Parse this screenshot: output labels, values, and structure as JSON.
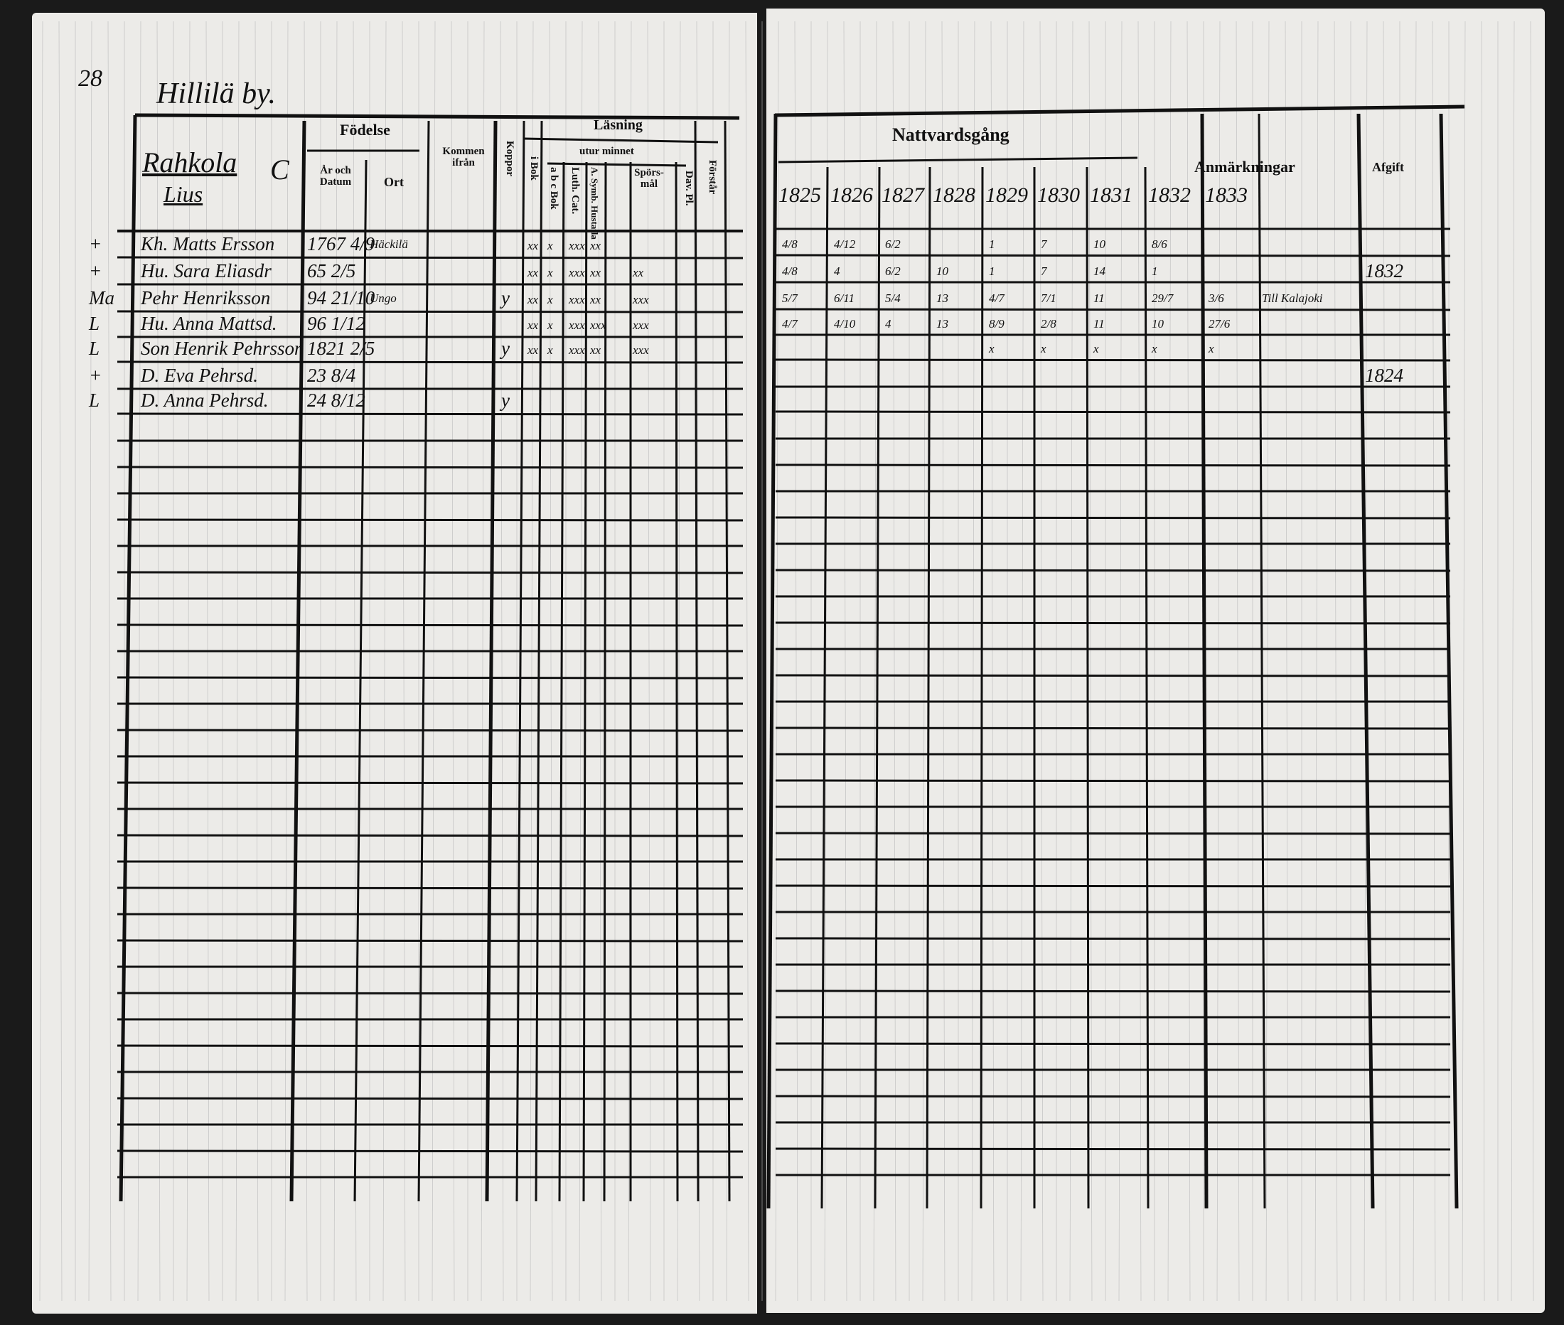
{
  "page_number": "28",
  "village": "Hillilä by.",
  "household": {
    "name": "Rahkola",
    "mark": "C",
    "sub": "Lius"
  },
  "headers": {
    "fodelse": "Födelse",
    "ar_och_datum": "År och Datum",
    "ort": "Ort",
    "kommen_ifran": "Kommen ifrån",
    "koppor": "Koppor",
    "lasning": "Läsning",
    "i_bok": "i Bok",
    "utur_minnet": "utur minnet",
    "abc_bok": "a b c Bok",
    "luth_cat": "Luth. Cat.",
    "a_symb_hustafla": "A. Symb. Hustafla",
    "sporsmal": "Spörs-mål",
    "dav_pl": "Dav. Pl.",
    "forstar": "Förstår",
    "nattvardsgang": "Nattvardsgång",
    "anmarkningar": "Anmärkningar",
    "afgift": "Afgift"
  },
  "years": [
    "1825",
    "1826",
    "1827",
    "1828",
    "1829",
    "1830",
    "1831",
    "1832",
    "1833"
  ],
  "rows": [
    {
      "margin": "+",
      "name": "Kh. Matts Ersson",
      "born": "1767 4/9",
      "place": "Häckilä",
      "koppor": "",
      "reading": [
        "xx",
        "x",
        "xxx",
        "xx",
        ""
      ],
      "communion": [
        "4/8",
        "4/12",
        "6/2",
        "",
        "1",
        "7",
        "10",
        "8/6",
        ""
      ],
      "note": "",
      "afgift": ""
    },
    {
      "margin": "+",
      "name": "Hu. Sara Eliasdr",
      "born": "65 2/5",
      "place": "",
      "koppor": "",
      "reading": [
        "xx",
        "x",
        "xxx",
        "xx",
        "xx"
      ],
      "communion": [
        "4/8",
        "4",
        "6/2",
        "10",
        "1",
        "7",
        "14",
        "1",
        ""
      ],
      "note": "",
      "afgift": "1832"
    },
    {
      "margin": "Ma",
      "name": "Pehr Henriksson",
      "born": "94 21/10",
      "place": "Ungo",
      "koppor": "y",
      "reading": [
        "xx",
        "x",
        "xxx",
        "xx",
        "xxx"
      ],
      "communion": [
        "5/7",
        "6/11",
        "5/4",
        "13",
        "4/7",
        "7/1",
        "11",
        "29/7",
        "3/6"
      ],
      "note": "Till Kalajoki",
      "afgift": ""
    },
    {
      "margin": "L",
      "name": "Hu. Anna Mattsd.",
      "born": "96 1/12",
      "place": "",
      "koppor": "",
      "reading": [
        "xx",
        "x",
        "xxx",
        "xxx",
        "xxx"
      ],
      "communion": [
        "4/7",
        "4/10",
        "4",
        "13",
        "8/9",
        "2/8",
        "11",
        "10",
        "27/6"
      ],
      "note": "",
      "afgift": ""
    },
    {
      "margin": "L",
      "name": "Son Henrik Pehrsson",
      "born": "1821 2/5",
      "place": "",
      "koppor": "y",
      "reading": [
        "xx",
        "x",
        "xxx",
        "xx",
        "xxx"
      ],
      "communion": [
        "",
        "",
        "",
        "",
        "x",
        "x",
        "x",
        "x",
        "x"
      ],
      "note": "",
      "afgift": ""
    },
    {
      "margin": "+",
      "name": "D. Eva Pehrsd.",
      "born": "23 8/4",
      "place": "",
      "koppor": "",
      "reading": [
        "",
        "",
        "",
        "",
        ""
      ],
      "communion": [
        "",
        "",
        "",
        "",
        "",
        "",
        "",
        "",
        ""
      ],
      "note": "",
      "afgift": "1824"
    },
    {
      "margin": "L",
      "name": "D. Anna Pehrsd.",
      "born": "24 8/12",
      "place": "",
      "koppor": "y",
      "reading": [
        "",
        "",
        "",
        "",
        ""
      ],
      "communion": [
        "",
        "",
        "",
        "",
        "",
        "",
        "",
        "",
        ""
      ],
      "note": "",
      "afgift": ""
    }
  ]
}
